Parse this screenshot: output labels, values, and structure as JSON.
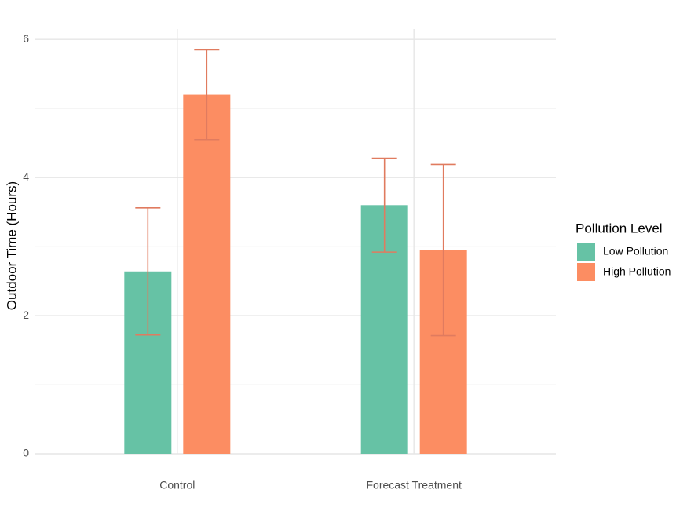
{
  "chart_data": {
    "type": "bar",
    "y_label": "Outdoor Time (Hours)",
    "categories": [
      "Control",
      "Forecast Treatment"
    ],
    "series": [
      {
        "name": "Low Pollution",
        "color": "#66c2a5",
        "values": [
          2.64,
          3.6
        ],
        "errors": [
          0.92,
          0.68
        ]
      },
      {
        "name": "High Pollution",
        "color": "#fc8d62",
        "values": [
          5.2,
          2.95
        ],
        "errors": [
          0.65,
          1.24
        ]
      }
    ],
    "error_color": "#e07b5f",
    "ylim": [
      0,
      6.15
    ],
    "yticks": [
      0,
      2,
      4,
      6
    ],
    "grid": true,
    "legend": {
      "title": "Pollution Level",
      "position": "right"
    }
  }
}
